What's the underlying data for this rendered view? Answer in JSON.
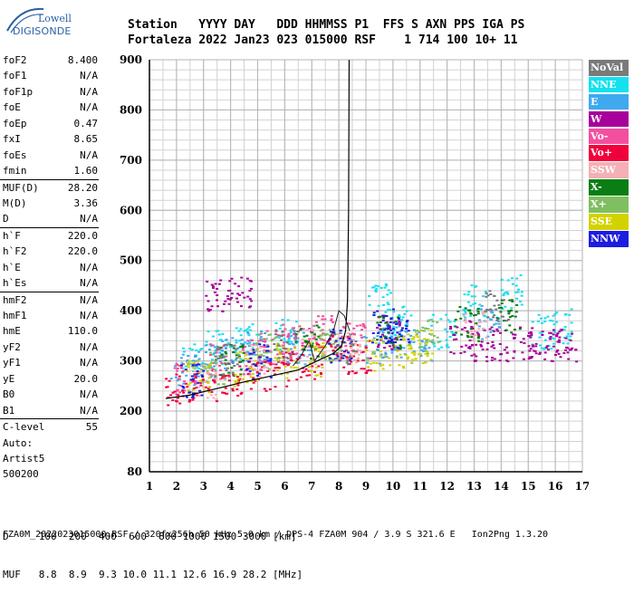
{
  "logo": {
    "line1": "Lowell",
    "line2": "DIGISONDE"
  },
  "header": {
    "keys": "Station   YYYY DAY   DDD HHMMSS P1  FFS S AXN PPS IGA PS",
    "values": "Fortaleza 2022 Jan23 023 015000 RSF    1 714 100 10+ 11"
  },
  "params": [
    {
      "k": "foF2",
      "v": "8.400"
    },
    {
      "k": "foF1",
      "v": "N/A"
    },
    {
      "k": "foF1p",
      "v": "N/A"
    },
    {
      "k": "foE",
      "v": "N/A"
    },
    {
      "k": "foEp",
      "v": "0.47"
    },
    {
      "k": "fxI",
      "v": "8.65"
    },
    {
      "k": "foEs",
      "v": "N/A"
    },
    {
      "k": "fmin",
      "v": "1.60"
    },
    {
      "sep": true
    },
    {
      "k": "MUF(D)",
      "v": "28.20"
    },
    {
      "k": "M(D)",
      "v": "3.36"
    },
    {
      "k": "D",
      "v": "N/A"
    },
    {
      "sep": true
    },
    {
      "k": "h`F",
      "v": "220.0"
    },
    {
      "k": "h`F2",
      "v": "220.0"
    },
    {
      "k": "h`E",
      "v": "N/A"
    },
    {
      "k": "h`Es",
      "v": "N/A"
    },
    {
      "sep": true
    },
    {
      "k": "hmF2",
      "v": "N/A"
    },
    {
      "k": "hmF1",
      "v": "N/A"
    },
    {
      "k": "hmE",
      "v": "110.0"
    },
    {
      "k": "yF2",
      "v": "N/A"
    },
    {
      "k": "yF1",
      "v": "N/A"
    },
    {
      "k": "yE",
      "v": "20.0"
    },
    {
      "k": "B0",
      "v": "N/A"
    },
    {
      "k": "B1",
      "v": "N/A"
    },
    {
      "sep": true
    },
    {
      "k": "C-level",
      "v": "55"
    }
  ],
  "extra": [
    "Auto:",
    "Artist5",
    "500200"
  ],
  "legend": [
    {
      "label": "NoVal",
      "color": "#7a7a7a"
    },
    {
      "label": "NNE",
      "color": "#14e0f0"
    },
    {
      "label": "E",
      "color": "#3fa9f0"
    },
    {
      "label": "W",
      "color": "#a8009a"
    },
    {
      "label": "Vo-",
      "color": "#f34fa0"
    },
    {
      "label": "Vo+",
      "color": "#f0003c"
    },
    {
      "label": "SSW",
      "color": "#f4b0b4"
    },
    {
      "label": "X-",
      "color": "#0a7e14"
    },
    {
      "label": "X+",
      "color": "#7fbf62"
    },
    {
      "label": "SSE",
      "color": "#d2d200"
    },
    {
      "label": "NNW",
      "color": "#1d1de0"
    }
  ],
  "bottom": {
    "d_line": "D     100  200  400  600  800 1000 1500 3000 [km]",
    "muf_line": "MUF   8.8  8.9  9.3 10.0 11.1 12.6 16.9 28.2 [MHz]"
  },
  "footer": "FZA0M_2022023015000.RSF / 320fx256h 50 kHz 5.0 km / DPS-4 FZA0M 904 / 3.9 S 321.6 E   Ion2Png 1.3.20",
  "chart_data": {
    "type": "scatter",
    "xlabel": "",
    "ylabel": "",
    "xlim": [
      1,
      17
    ],
    "ylim": [
      80,
      900
    ],
    "x_ticks": [
      1,
      2,
      3,
      4,
      5,
      6,
      7,
      8,
      9,
      10,
      11,
      12,
      13,
      14,
      15,
      16,
      17
    ],
    "y_ticks": [
      80,
      200,
      300,
      400,
      500,
      600,
      700,
      800,
      900
    ],
    "grid": true,
    "legend_position": "right",
    "series": [
      {
        "name": "NNE",
        "clusters": [
          [
            2.5,
            300
          ],
          [
            3.5,
            330
          ],
          [
            4.5,
            340
          ],
          [
            6,
            350
          ],
          [
            9.5,
            420
          ],
          [
            10.2,
            380
          ],
          [
            11.8,
            360
          ],
          [
            13,
            420
          ],
          [
            14.3,
            440
          ],
          [
            15.5,
            360
          ],
          [
            16.2,
            370
          ]
        ]
      },
      {
        "name": "E",
        "clusters": [
          [
            2.2,
            280
          ],
          [
            3,
            300
          ],
          [
            4,
            320
          ],
          [
            5,
            330
          ],
          [
            6.5,
            330
          ],
          [
            9.3,
            330
          ],
          [
            10,
            340
          ],
          [
            11,
            330
          ],
          [
            13.5,
            380
          ]
        ]
      },
      {
        "name": "W",
        "clusters": [
          [
            3.5,
            430
          ],
          [
            4.3,
            440
          ],
          [
            9.8,
            360
          ],
          [
            12.5,
            350
          ],
          [
            13.3,
            335
          ],
          [
            14,
            330
          ],
          [
            14.8,
            340
          ],
          [
            15.6,
            335
          ],
          [
            16.3,
            335
          ]
        ]
      },
      {
        "name": "Vo-",
        "clusters": [
          [
            2.3,
            270
          ],
          [
            3.5,
            300
          ],
          [
            4.8,
            310
          ],
          [
            5.5,
            330
          ],
          [
            6.3,
            340
          ],
          [
            7.3,
            360
          ],
          [
            8.5,
            350
          ]
        ]
      },
      {
        "name": "Vo+",
        "clusters": [
          [
            2,
            240
          ],
          [
            3,
            250
          ],
          [
            4,
            265
          ],
          [
            5,
            275
          ],
          [
            6,
            285
          ],
          [
            7,
            300
          ],
          [
            8,
            320
          ],
          [
            8.7,
            310
          ]
        ]
      },
      {
        "name": "SSW",
        "clusters": [
          [
            3,
            260
          ],
          [
            5,
            300
          ],
          [
            7,
            330
          ],
          [
            8.3,
            330
          ],
          [
            13,
            370
          ]
        ]
      },
      {
        "name": "X-",
        "clusters": [
          [
            4,
            300
          ],
          [
            6.8,
            340
          ],
          [
            9.8,
            360
          ],
          [
            12.7,
            375
          ],
          [
            14.2,
            390
          ]
        ]
      },
      {
        "name": "X+",
        "clusters": [
          [
            3.3,
            290
          ],
          [
            5.3,
            320
          ],
          [
            7.6,
            335
          ],
          [
            11.2,
            350
          ]
        ]
      },
      {
        "name": "SSE",
        "clusters": [
          [
            2.8,
            270
          ],
          [
            4.5,
            285
          ],
          [
            6,
            300
          ],
          [
            7.2,
            305
          ],
          [
            9.4,
            315
          ],
          [
            10.5,
            320
          ],
          [
            11,
            330
          ]
        ]
      },
      {
        "name": "NNW",
        "clusters": [
          [
            2.5,
            260
          ],
          [
            5,
            300
          ],
          [
            8,
            330
          ],
          [
            9.6,
            370
          ],
          [
            10.1,
            360
          ]
        ]
      },
      {
        "name": "NoVal",
        "clusters": [
          [
            3.8,
            300
          ],
          [
            6,
            330
          ],
          [
            8.2,
            330
          ],
          [
            13.8,
            410
          ]
        ]
      }
    ],
    "profile_line": [
      [
        1.6,
        225
      ],
      [
        2.5,
        232
      ],
      [
        3.5,
        245
      ],
      [
        4.5,
        258
      ],
      [
        5.5,
        270
      ],
      [
        6.5,
        282
      ],
      [
        7.2,
        300
      ],
      [
        7.8,
        315
      ],
      [
        8.1,
        330
      ],
      [
        8.25,
        360
      ],
      [
        8.32,
        420
      ],
      [
        8.36,
        600
      ],
      [
        8.38,
        900
      ]
    ],
    "trace_line": [
      [
        6.3,
        290
      ],
      [
        6.6,
        310
      ],
      [
        6.9,
        340
      ],
      [
        7.1,
        300
      ],
      [
        7.5,
        330
      ],
      [
        7.8,
        360
      ],
      [
        8.0,
        400
      ],
      [
        8.2,
        390
      ],
      [
        8.4,
        360
      ]
    ]
  }
}
